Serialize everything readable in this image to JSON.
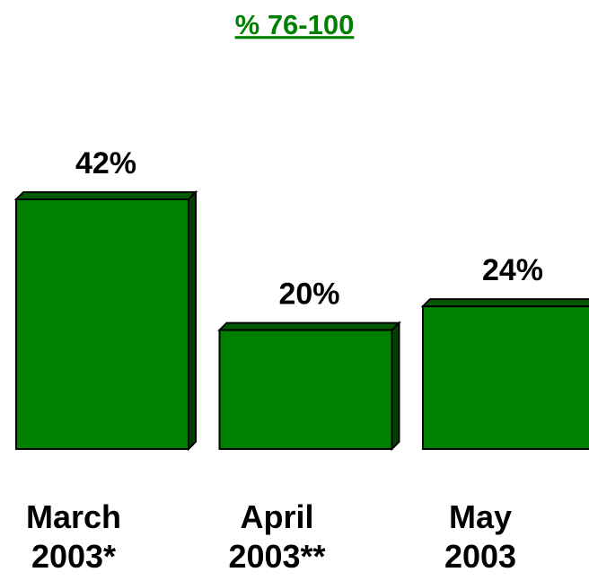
{
  "chart_data": {
    "type": "bar",
    "title": "% 76-100",
    "categories": [
      "March 2003*",
      "April 2003**",
      "May 2003"
    ],
    "values": [
      42,
      20,
      24
    ],
    "value_labels": [
      "42%",
      "20%",
      "24%"
    ],
    "color": "#008000"
  }
}
